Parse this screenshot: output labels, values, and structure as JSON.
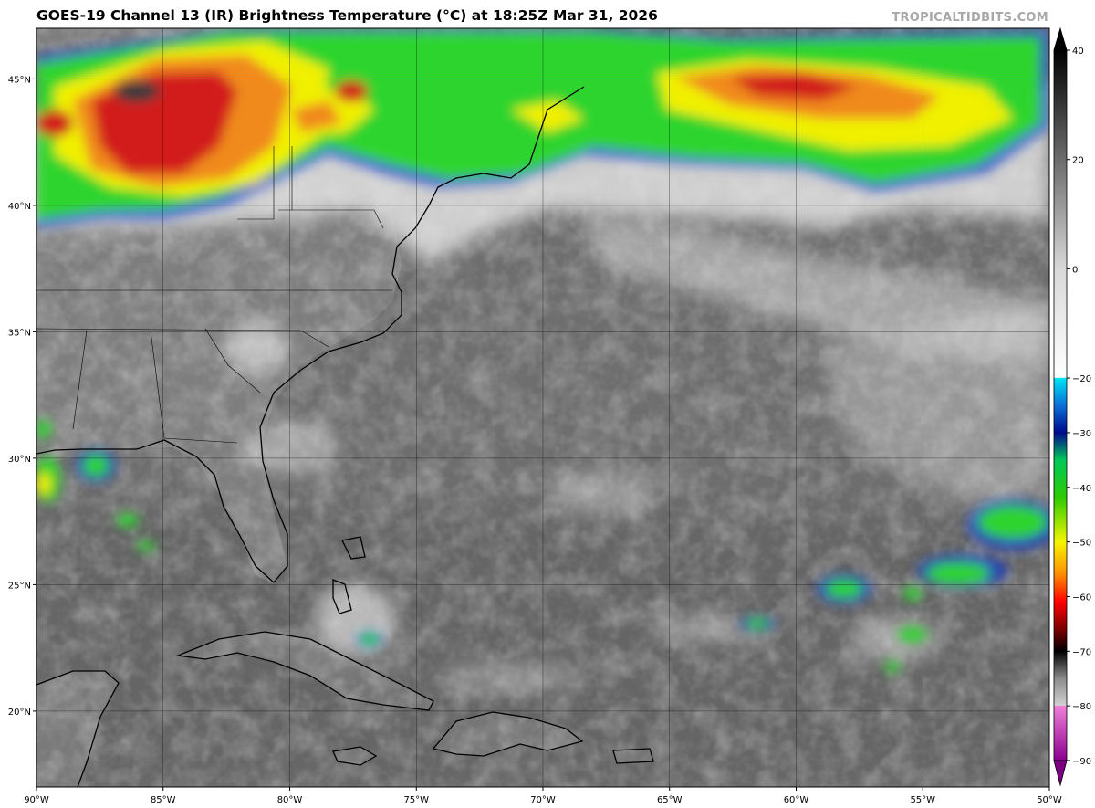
{
  "title": "GOES-19 Channel 13 (IR) Brightness Temperature (°C) at 18:25Z Mar 31, 2026",
  "credit": "TROPICALTIDBITS.COM",
  "map": {
    "lon_range": [
      -90,
      -50
    ],
    "lat_range": [
      17,
      47
    ],
    "lon_ticks": [
      {
        "lon": -90,
        "label": "90°W"
      },
      {
        "lon": -85,
        "label": "85°W"
      },
      {
        "lon": -80,
        "label": "80°W"
      },
      {
        "lon": -75,
        "label": "75°W"
      },
      {
        "lon": -70,
        "label": "70°W"
      },
      {
        "lon": -65,
        "label": "65°W"
      },
      {
        "lon": -60,
        "label": "60°W"
      },
      {
        "lon": -55,
        "label": "55°W"
      },
      {
        "lon": -50,
        "label": "50°W"
      }
    ],
    "lat_ticks": [
      {
        "lat": 20,
        "label": "20°N"
      },
      {
        "lat": 25,
        "label": "25°N"
      },
      {
        "lat": 30,
        "label": "30°N"
      },
      {
        "lat": 35,
        "label": "35°N"
      },
      {
        "lat": 40,
        "label": "40°N"
      },
      {
        "lat": 45,
        "label": "45°N"
      }
    ],
    "colors": {
      "ocean_base": "#6e6e6e",
      "high_cloud": "#e8e8e8",
      "cold_green": "#2ed62e",
      "cold_yellow": "#f2f200",
      "cold_orange": "#f08a1a",
      "cold_red": "#d21e1e",
      "cold_blue": "#1a2aa8",
      "coast": "#000000"
    }
  },
  "colorbar": {
    "ticks": [
      {
        "value": 40,
        "label": "40"
      },
      {
        "value": 20,
        "label": "20"
      },
      {
        "value": 0,
        "label": "0"
      },
      {
        "value": -20,
        "label": "−20"
      },
      {
        "value": -30,
        "label": "−30"
      },
      {
        "value": -40,
        "label": "−40"
      },
      {
        "value": -50,
        "label": "−50"
      },
      {
        "value": -60,
        "label": "−60"
      },
      {
        "value": -70,
        "label": "−70"
      },
      {
        "value": -80,
        "label": "−80"
      },
      {
        "value": -90,
        "label": "−90"
      }
    ],
    "range": [
      -90,
      40
    ],
    "stops": [
      {
        "value": 40,
        "color": "#000000"
      },
      {
        "value": 0,
        "color": "#d8d8d8"
      },
      {
        "value": -19.9,
        "color": "#ffffff"
      },
      {
        "value": -20,
        "color": "#00e6f5"
      },
      {
        "value": -25,
        "color": "#0a70d8"
      },
      {
        "value": -30,
        "color": "#000a8c"
      },
      {
        "value": -35,
        "color": "#00c85a"
      },
      {
        "value": -42,
        "color": "#2ecc00"
      },
      {
        "value": -50,
        "color": "#f5f500"
      },
      {
        "value": -56,
        "color": "#ff8c00"
      },
      {
        "value": -61,
        "color": "#ff0000"
      },
      {
        "value": -66,
        "color": "#7a0000"
      },
      {
        "value": -70,
        "color": "#000000"
      },
      {
        "value": -75,
        "color": "#8c8c8c"
      },
      {
        "value": -79.9,
        "color": "#d0d0d0"
      },
      {
        "value": -80,
        "color": "#f080d8"
      },
      {
        "value": -90,
        "color": "#8c0090"
      }
    ]
  }
}
